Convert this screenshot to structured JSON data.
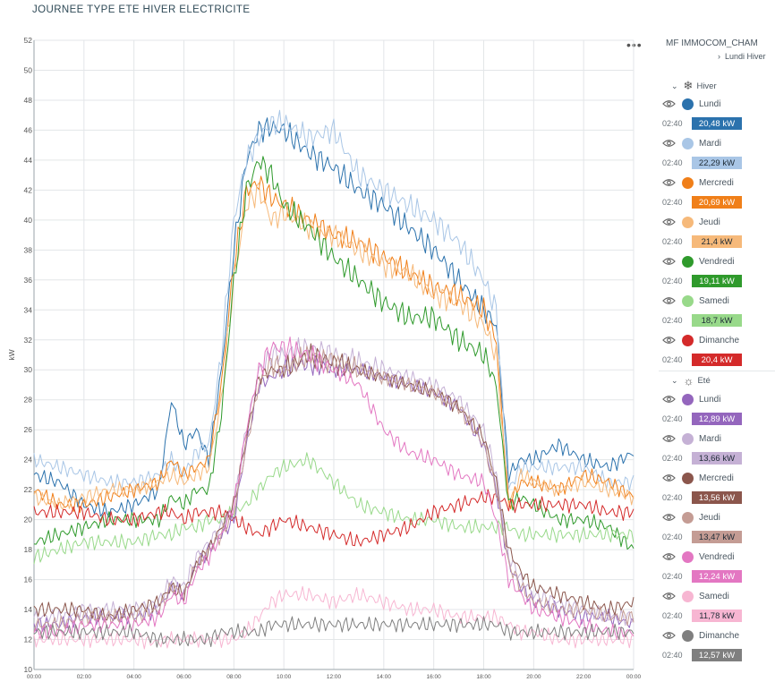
{
  "page": {
    "title": "JOURNEE TYPE ETE HIVER ELECTRICITE",
    "menu_icon": "more-dots-icon"
  },
  "sidebar": {
    "site_name": "MF IMMOCOM_CHAM",
    "breadcrumb": "Lundi Hiver",
    "legend_time": "02:40",
    "groups": [
      {
        "label": "Hiver",
        "icon": "snowflake-icon",
        "items": [
          {
            "label": "Lundi",
            "color": "#2b72ad",
            "value": "20,48 kW",
            "text_color": "#ffffff"
          },
          {
            "label": "Mardi",
            "color": "#a9c6e6",
            "value": "22,29 kW",
            "text_color": "#1e2b36"
          },
          {
            "label": "Mercredi",
            "color": "#f07f19",
            "value": "20,69 kW",
            "text_color": "#ffffff"
          },
          {
            "label": "Jeudi",
            "color": "#f6b97a",
            "value": "21,4 kW",
            "text_color": "#1e2b36"
          },
          {
            "label": "Vendredi",
            "color": "#2f9a2c",
            "value": "19,11 kW",
            "text_color": "#ffffff"
          },
          {
            "label": "Samedi",
            "color": "#98d98a",
            "value": "18,7 kW",
            "text_color": "#1e2b36"
          },
          {
            "label": "Dimanche",
            "color": "#d42a2a",
            "value": "20,4 kW",
            "text_color": "#ffffff"
          }
        ]
      },
      {
        "label": "Eté",
        "icon": "sun-icon",
        "items": [
          {
            "label": "Lundi",
            "color": "#9466bd",
            "value": "12,89 kW",
            "text_color": "#ffffff"
          },
          {
            "label": "Mardi",
            "color": "#c5b1d5",
            "value": "13,66 kW",
            "text_color": "#1e2b36"
          },
          {
            "label": "Mercredi",
            "color": "#8b564c",
            "value": "13,56 kW",
            "text_color": "#ffffff"
          },
          {
            "label": "Jeudi",
            "color": "#c49c94",
            "value": "13,47 kW",
            "text_color": "#1e2b36"
          },
          {
            "label": "Vendredi",
            "color": "#e377c2",
            "value": "12,24 kW",
            "text_color": "#ffffff"
          },
          {
            "label": "Samedi",
            "color": "#f7b6d2",
            "value": "11,78 kW",
            "text_color": "#1e2b36"
          },
          {
            "label": "Dimanche",
            "color": "#7f7f7f",
            "value": "12,57 kW",
            "text_color": "#ffffff"
          }
        ]
      }
    ]
  },
  "chart_data": {
    "type": "line",
    "title": "",
    "xlabel": "",
    "ylabel": "kW",
    "ylim": [
      10,
      52
    ],
    "yticks": [
      10,
      12,
      14,
      16,
      18,
      20,
      22,
      24,
      26,
      28,
      30,
      32,
      34,
      36,
      38,
      40,
      42,
      44,
      46,
      48,
      50,
      52
    ],
    "xticks": [
      "00:00",
      "02:00",
      "04:00",
      "06:00",
      "08:00",
      "10:00",
      "12:00",
      "14:00",
      "16:00",
      "18:00",
      "20:00",
      "22:00",
      "00:00"
    ],
    "x_hours": [
      0,
      1,
      2,
      3,
      4,
      5,
      5.5,
      6,
      6.5,
      7,
      7.5,
      8,
      8.5,
      9,
      9.5,
      10,
      11,
      12,
      13,
      14,
      15,
      16,
      17,
      18,
      18.5,
      19,
      19.5,
      20,
      21,
      22,
      23,
      24
    ],
    "grid": true,
    "series": [
      {
        "name": "Lundi Hiver",
        "color": "#2b72ad",
        "values": [
          23,
          22.5,
          21,
          20.5,
          21,
          22,
          28,
          25,
          26,
          24,
          30,
          38,
          44,
          46,
          46.2,
          46,
          44.5,
          43.5,
          42,
          41,
          39.5,
          38,
          36,
          34,
          33,
          23,
          24,
          24,
          25,
          24,
          23.5,
          24.5
        ]
      },
      {
        "name": "Mardi Hiver",
        "color": "#a9c6e6",
        "values": [
          24,
          23.5,
          23,
          22.5,
          22.5,
          23,
          24,
          23,
          24.5,
          25,
          31,
          40,
          44,
          45.5,
          46.5,
          46.5,
          45.5,
          46,
          43,
          42,
          41,
          40,
          38.5,
          36,
          34,
          22,
          23.5,
          23.5,
          23.5,
          23.5,
          22.5,
          22.5
        ]
      },
      {
        "name": "Mercredi Hiver",
        "color": "#f07f19",
        "values": [
          22,
          21,
          21,
          21.5,
          22,
          22.5,
          24,
          23,
          23.5,
          24,
          29,
          37,
          42,
          42.5,
          41.5,
          41,
          40,
          39,
          38.5,
          37.5,
          36.5,
          35.5,
          35,
          34,
          32,
          21,
          22.5,
          22.5,
          22,
          23,
          22.5,
          21.5
        ]
      },
      {
        "name": "Jeudi Hiver",
        "color": "#f6b97a",
        "values": [
          21.5,
          21,
          21.5,
          22,
          22,
          22.5,
          23,
          22.5,
          23,
          23.5,
          28,
          36,
          41,
          42,
          40,
          40.5,
          39.5,
          39,
          38,
          37,
          36.5,
          35,
          34.5,
          33,
          31,
          21,
          23,
          22.5,
          22,
          22.5,
          22,
          21.5
        ]
      },
      {
        "name": "Vendredi Hiver",
        "color": "#2f9a2c",
        "values": [
          18.5,
          19,
          19.5,
          20,
          20,
          20,
          21.5,
          21,
          22,
          22,
          27,
          36,
          42,
          44,
          43,
          41,
          39.5,
          37.5,
          36,
          34.5,
          33.5,
          33.5,
          32,
          31,
          29,
          21,
          21.5,
          21,
          20,
          20,
          19.5,
          18
        ]
      },
      {
        "name": "Samedi Hiver",
        "color": "#98d98a",
        "values": [
          17.5,
          18,
          18.5,
          18.5,
          18.5,
          19,
          19,
          19.5,
          19.5,
          20,
          20,
          20.5,
          21,
          22,
          23,
          23.5,
          24,
          22.5,
          21,
          20.5,
          20,
          20,
          19.5,
          19.5,
          19.5,
          19.5,
          19,
          19,
          19,
          19,
          19,
          19
        ]
      },
      {
        "name": "Dimanche Hiver",
        "color": "#d42a2a",
        "values": [
          20.5,
          20.5,
          20.5,
          20,
          20,
          20.5,
          20.5,
          20,
          20.5,
          20.5,
          20.5,
          20,
          19.5,
          19,
          19.5,
          20,
          19.5,
          19,
          18.5,
          19,
          19.5,
          20.5,
          21,
          21.5,
          21.5,
          21,
          21,
          21,
          21,
          21,
          20.5,
          20.5
        ]
      },
      {
        "name": "Lundi Eté",
        "color": "#9466bd",
        "values": [
          13,
          13,
          13.5,
          13.5,
          13.5,
          14,
          15.5,
          15,
          17,
          18,
          19,
          20,
          25,
          29,
          29.5,
          30,
          30.5,
          30,
          30,
          29.5,
          29,
          28.5,
          27.5,
          25,
          22,
          17,
          15.5,
          14.5,
          14,
          13.5,
          13.5,
          13
        ]
      },
      {
        "name": "Mardi Eté",
        "color": "#c5b1d5",
        "values": [
          13.5,
          13.5,
          14,
          14,
          14,
          14.5,
          16,
          15.5,
          17.5,
          18.5,
          19.5,
          21,
          26,
          30,
          31,
          31,
          31.5,
          31,
          30.5,
          30,
          29.5,
          29,
          28,
          26,
          23,
          17.5,
          16,
          15,
          14.5,
          14,
          13.5,
          13.5
        ]
      },
      {
        "name": "Mercredi Eté",
        "color": "#8b564c",
        "values": [
          14,
          14,
          14,
          13.5,
          14,
          14.5,
          15.5,
          15,
          17,
          18,
          19.5,
          21,
          25.5,
          29.5,
          30,
          30,
          31,
          30.5,
          30,
          29.5,
          29,
          28.5,
          27.5,
          25.5,
          22.5,
          18,
          16.5,
          15.5,
          15,
          14.5,
          14,
          14.5
        ]
      },
      {
        "name": "Jeudi Eté",
        "color": "#c49c94",
        "values": [
          13,
          13,
          13.5,
          13.5,
          13.5,
          14,
          15.5,
          15,
          17,
          18,
          19,
          20.5,
          25,
          29,
          30.5,
          30,
          31,
          30.5,
          30,
          29.5,
          29,
          28.5,
          27.5,
          25,
          22,
          17,
          15.5,
          14.5,
          14,
          14,
          13.5,
          13.5
        ]
      },
      {
        "name": "Vendredi Eté",
        "color": "#e377c2",
        "values": [
          12.5,
          12.5,
          13,
          13,
          13,
          13.5,
          15,
          14.5,
          16.5,
          17.5,
          19,
          21,
          26,
          30,
          31.5,
          31.5,
          31,
          30,
          29,
          26,
          24.5,
          24,
          23,
          22.5,
          20,
          16,
          15,
          14,
          13.5,
          13,
          12.5,
          12.5
        ]
      },
      {
        "name": "Samedi Eté",
        "color": "#f7b6d2",
        "values": [
          12,
          12,
          12,
          12,
          12,
          11.8,
          12,
          12,
          12,
          12,
          12,
          12,
          12.5,
          13.5,
          14.5,
          15,
          15,
          14.5,
          15,
          14.5,
          14,
          14,
          13.5,
          13.5,
          13.5,
          13,
          12.5,
          12.5,
          12,
          12,
          12,
          12
        ]
      },
      {
        "name": "Dimanche Eté",
        "color": "#7f7f7f",
        "values": [
          12.5,
          12.5,
          12.5,
          12.5,
          12.5,
          12,
          12,
          12,
          12,
          12,
          12.5,
          12.5,
          12.5,
          12.5,
          13,
          13,
          13,
          13,
          13,
          13,
          13,
          13,
          13,
          13,
          13,
          12.5,
          12.5,
          12.5,
          12.5,
          12.5,
          12.5,
          12.5
        ]
      }
    ]
  }
}
